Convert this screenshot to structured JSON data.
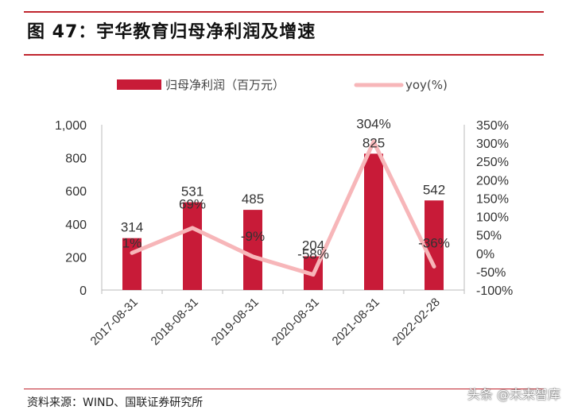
{
  "header": {
    "title": "图 47：宇华教育归母净利润及增速"
  },
  "footer": {
    "source": "资料来源：WIND、国联证券研究所",
    "watermark": "头条 @未来智库"
  },
  "colors": {
    "bar": "#c81b38",
    "line": "#f7b6b9",
    "accent": "#c0252e"
  },
  "chart_data": {
    "type": "bar",
    "categories": [
      "2017-08-31",
      "2018-08-31",
      "2019-08-31",
      "2020-08-31",
      "2021-08-31",
      "2022-02-28"
    ],
    "series": [
      {
        "name": "归母净利润（百万元）",
        "type": "bar",
        "axis": "left",
        "values": [
          314,
          531,
          485,
          204,
          825,
          542
        ],
        "labels": [
          "314",
          "531",
          "485",
          "204",
          "825",
          "542"
        ]
      },
      {
        "name": "yoy(%)",
        "type": "line",
        "axis": "right",
        "values": [
          1,
          69,
          -9,
          -58,
          304,
          -36
        ],
        "labels": [
          "1%",
          "69%",
          "-9%",
          "-58%",
          "304%",
          "-36%"
        ]
      }
    ],
    "left_axis": {
      "ticks": [
        0,
        200,
        400,
        600,
        800,
        1000
      ],
      "tick_labels": [
        "0",
        "200",
        "400",
        "600",
        "800",
        "1,000"
      ],
      "range": [
        0,
        1000
      ]
    },
    "right_axis": {
      "ticks": [
        -100,
        -50,
        0,
        50,
        100,
        150,
        200,
        250,
        300,
        350
      ],
      "tick_labels": [
        "-100%",
        "-50%",
        "0%",
        "50%",
        "100%",
        "150%",
        "200%",
        "250%",
        "300%",
        "350%"
      ],
      "range": [
        -100,
        350
      ]
    },
    "legend_position": "top"
  }
}
